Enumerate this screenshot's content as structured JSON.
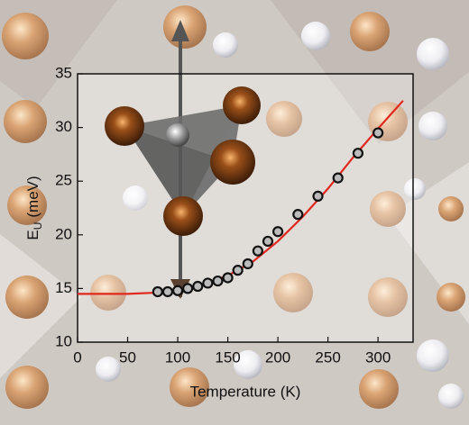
{
  "chart_data": {
    "type": "scatter",
    "xlabel": "Temperature (K)",
    "ylabel": [
      "E",
      "U",
      "(meV)"
    ],
    "xlim": [
      0,
      335
    ],
    "xticks": [
      0,
      50,
      100,
      150,
      200,
      250,
      300
    ],
    "ylim": [
      10,
      35
    ],
    "yticks": [
      10,
      15,
      20,
      25,
      30,
      35
    ],
    "series": [
      {
        "type": "scatter",
        "color": "#111111",
        "x": [
          80,
          90,
          100,
          110,
          120,
          130,
          140,
          150,
          160,
          170,
          180,
          190,
          200,
          220,
          240,
          260,
          280,
          300
        ],
        "values": [
          14.7,
          14.7,
          14.8,
          15.0,
          15.2,
          15.5,
          15.7,
          16.0,
          16.7,
          17.3,
          18.5,
          19.4,
          20.3,
          21.9,
          23.6,
          25.3,
          27.6,
          29.5
        ]
      },
      {
        "type": "line",
        "color": "#e0281e",
        "x": [
          0,
          25,
          50,
          75,
          100,
          125,
          150,
          175,
          200,
          225,
          250,
          275,
          300,
          325
        ],
        "values": [
          14.5,
          14.5,
          14.5,
          14.6,
          14.9,
          15.4,
          16.2,
          17.5,
          19.4,
          21.7,
          24.3,
          27.2,
          29.9,
          32.5
        ]
      }
    ]
  }
}
